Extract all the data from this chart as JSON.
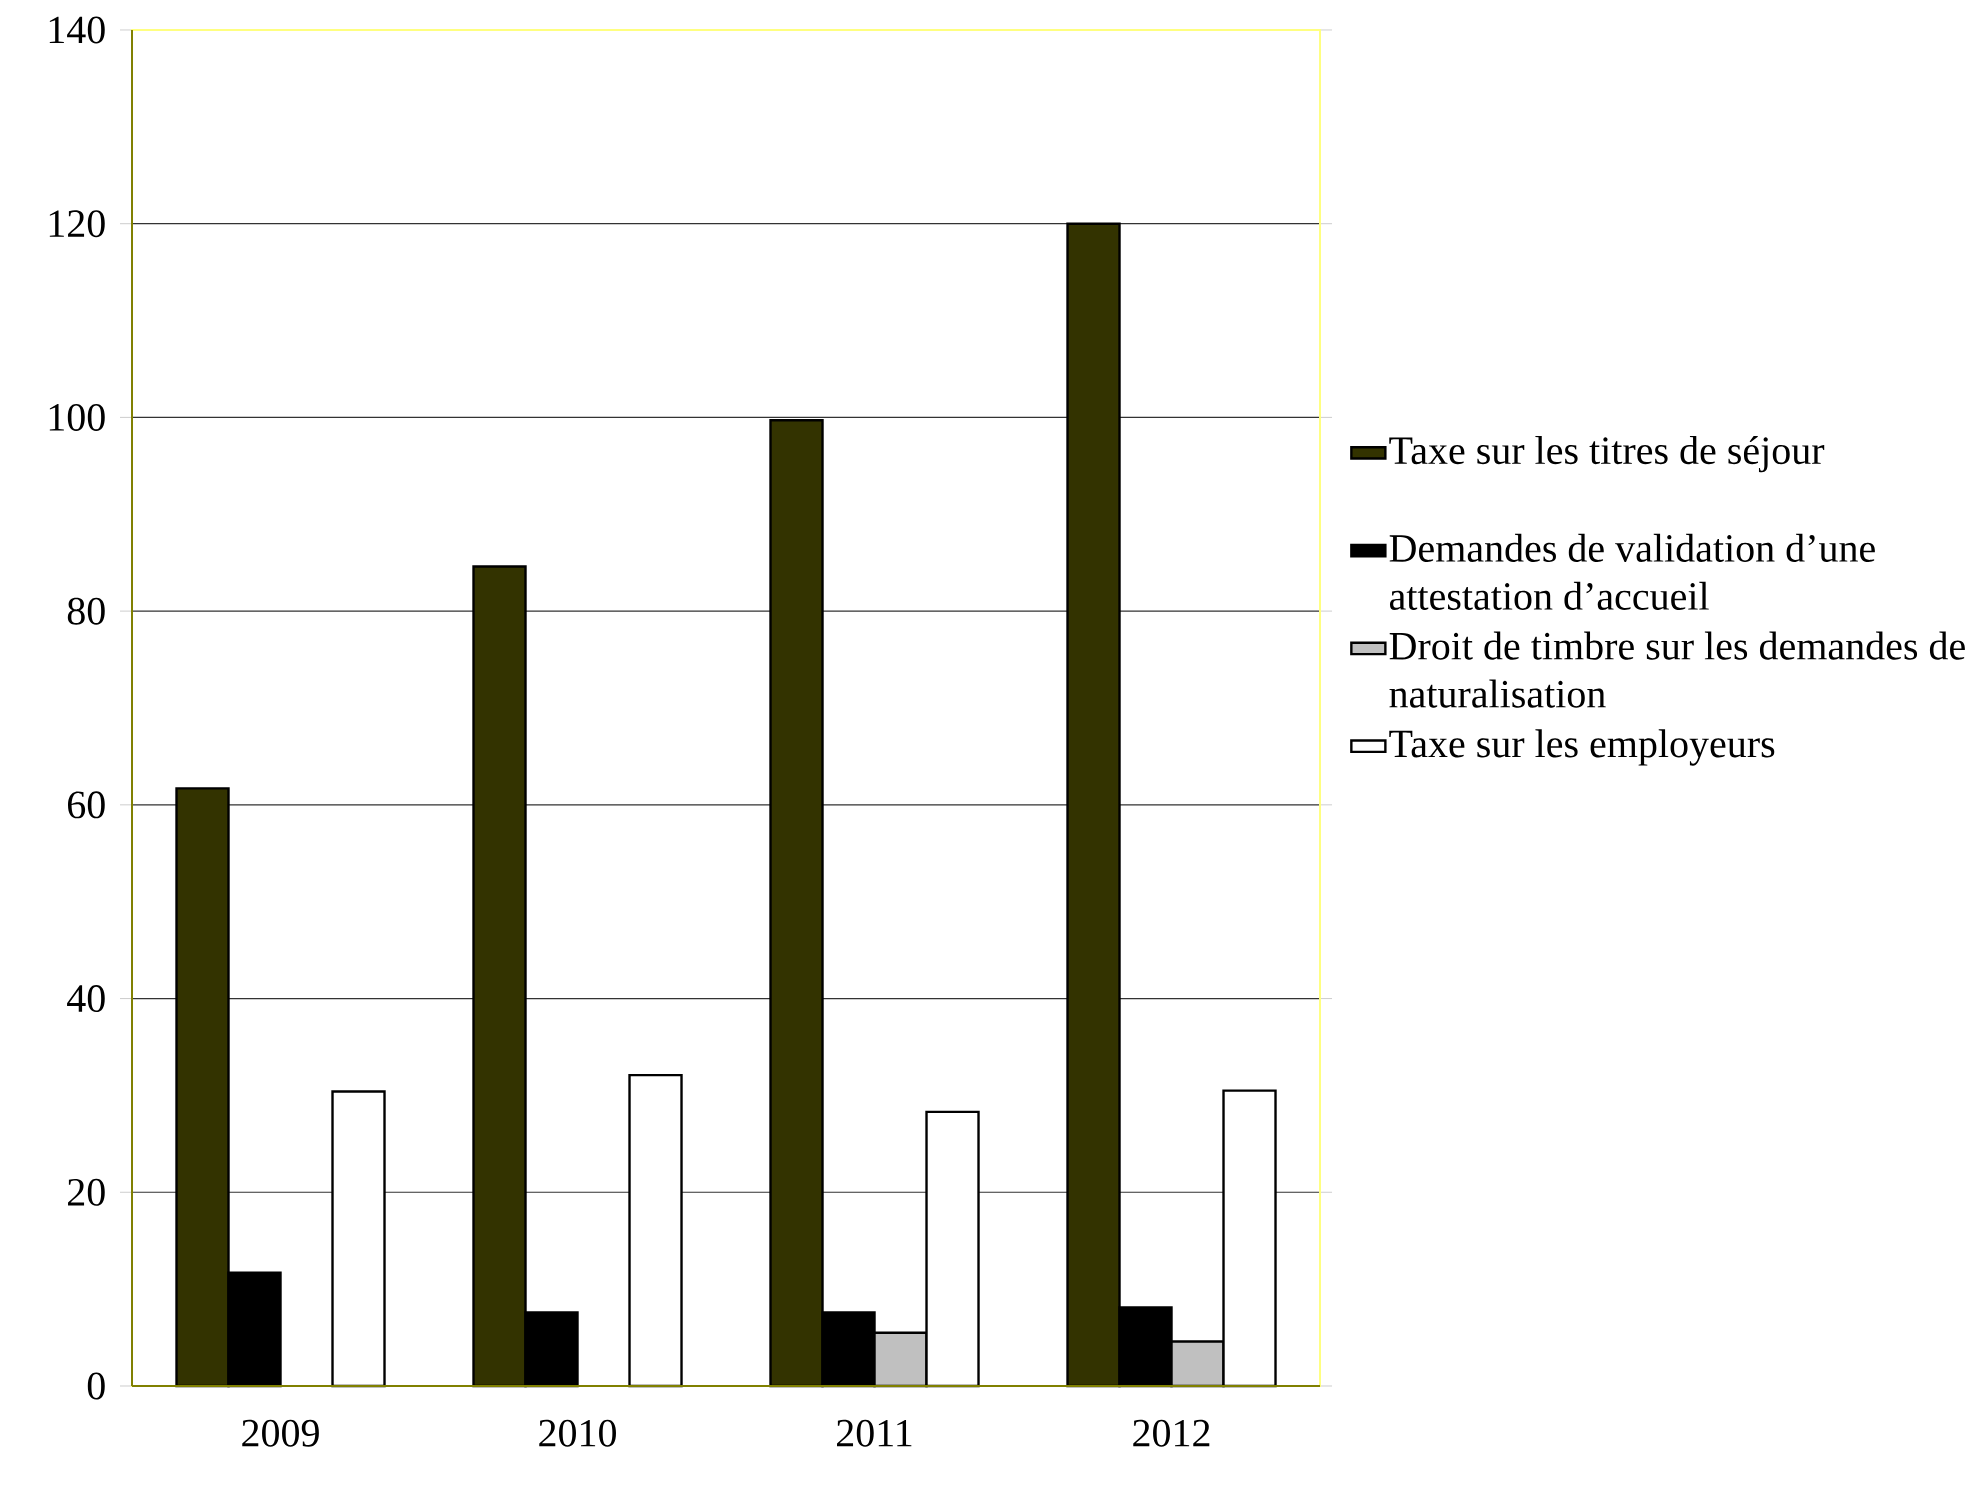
{
  "chart_data": {
    "type": "bar",
    "categories": [
      "2009",
      "2010",
      "2011",
      "2012"
    ],
    "series": [
      {
        "name": "Taxe sur les titres de séjour",
        "color": "#333300",
        "values": [
          61.7,
          84.6,
          99.7,
          120
        ]
      },
      {
        "name": "Demandes de validation d’une attestation d’accueil",
        "color": "#000000",
        "values": [
          11.7,
          7.6,
          7.6,
          8.1
        ]
      },
      {
        "name": "Droit de timbre sur les demandes de naturalisation",
        "color": "#c0c0c0",
        "values": [
          null,
          null,
          5.5,
          4.6
        ]
      },
      {
        "name": "Taxe sur les employeurs",
        "color": "#ffffff",
        "values": [
          30.4,
          32.1,
          28.3,
          30.5
        ]
      }
    ],
    "ylim": [
      0,
      140
    ],
    "yticks": [
      0,
      20,
      40,
      60,
      80,
      100,
      120,
      140
    ],
    "grid": "y",
    "legend": "right"
  }
}
